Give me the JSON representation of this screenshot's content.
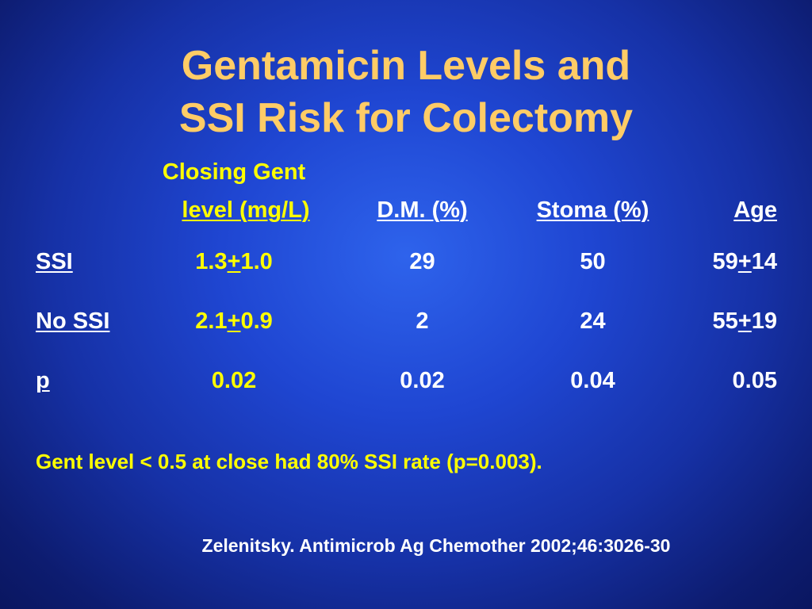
{
  "title": {
    "line1": "Gentamicin Levels and",
    "line2": "SSI Risk for Colectomy"
  },
  "table": {
    "headers": {
      "gent_line1": "Closing Gent",
      "gent_line2": "level (mg/L)",
      "dm": "D.M. (%)",
      "stoma": "Stoma (%)",
      "age": "Age"
    },
    "rows": [
      {
        "label": "SSI",
        "gent": {
          "mean": "1.3",
          "pm": "+",
          "sd": "1.0"
        },
        "dm": "29",
        "stoma": "50",
        "age": {
          "mean": "59",
          "pm": "+",
          "sd": "14"
        }
      },
      {
        "label": "No SSI",
        "gent": {
          "mean": "2.1",
          "pm": "+",
          "sd": "0.9"
        },
        "dm": "2",
        "stoma": "24",
        "age": {
          "mean": "55",
          "pm": "+",
          "sd": "19"
        }
      }
    ],
    "p_row": {
      "label": "p",
      "gent": "0.02",
      "dm": "0.02",
      "stoma": "0.04",
      "age": "0.05"
    }
  },
  "note": "Gent level < 0.5 at close had 80% SSI rate (p=0.003).",
  "citation": "Zelenitsky.  Antimicrob Ag Chemother 2002;46:3026-30",
  "colors": {
    "title": "#ffcc66",
    "gent_column": "#ffff00",
    "body_text": "#ffffff",
    "background": "#1f46d2"
  }
}
